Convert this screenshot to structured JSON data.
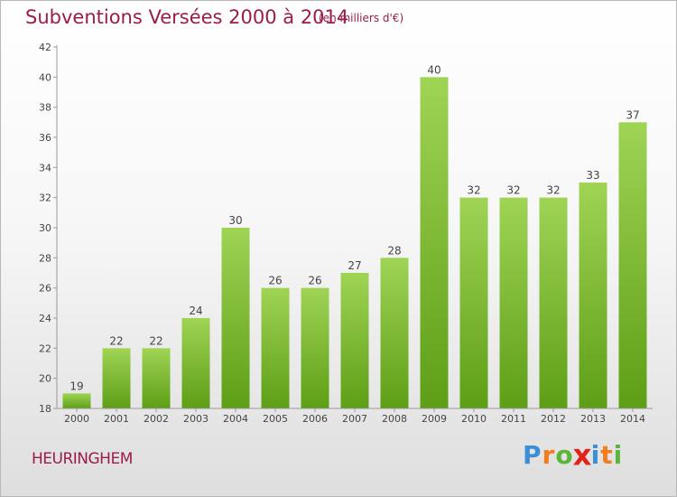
{
  "chart_data": {
    "type": "bar",
    "title": "Subventions Versées 2000 à 2014",
    "subtitle": "(en milliers d'€)",
    "categories": [
      "2000",
      "2001",
      "2002",
      "2003",
      "2004",
      "2005",
      "2006",
      "2007",
      "2008",
      "2009",
      "2010",
      "2011",
      "2012",
      "2013",
      "2014"
    ],
    "values": [
      19,
      22,
      22,
      24,
      30,
      26,
      26,
      27,
      28,
      40,
      32,
      32,
      32,
      33,
      37
    ],
    "xlabel": "",
    "ylabel": "",
    "ylim": [
      18,
      42
    ],
    "yticks": [
      18,
      20,
      22,
      24,
      26,
      28,
      30,
      32,
      34,
      36,
      38,
      40,
      42
    ],
    "grid": false,
    "legend": "none",
    "bar_color": "#7cbf2a",
    "text_color": "#9b1c4c"
  },
  "footer": {
    "commune": "HEURINGHEM",
    "logo": {
      "text": "Proxiti",
      "letters": [
        {
          "char": "P",
          "color": "#3a8fd6"
        },
        {
          "char": "r",
          "color": "#f07d1e"
        },
        {
          "char": "o",
          "color": "#5bb53b"
        },
        {
          "char": "x",
          "color": "#e2231a"
        },
        {
          "char": "i",
          "color": "#3a8fd6"
        },
        {
          "char": "t",
          "color": "#f07d1e"
        },
        {
          "char": "i",
          "color": "#5bb53b"
        }
      ]
    }
  }
}
